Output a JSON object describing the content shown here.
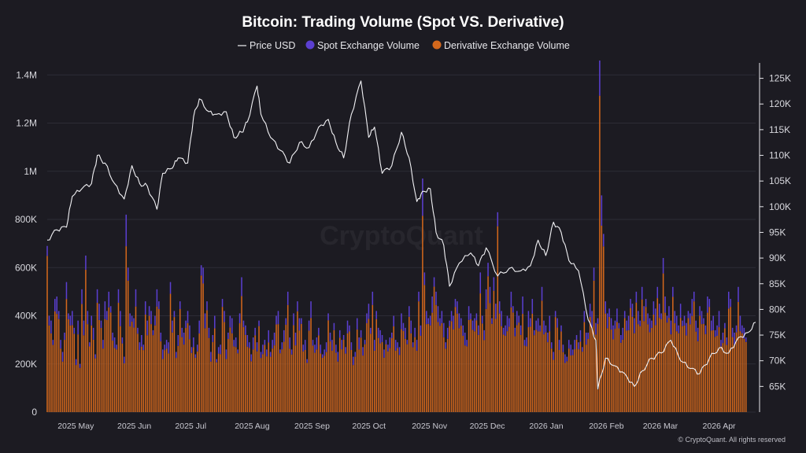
{
  "chart_data": {
    "type": "bar",
    "title": "Bitcoin: Trading Volume (Spot VS. Derivative)",
    "legend": {
      "placement": "top-center",
      "entries": [
        "Price USD",
        "Spot Exchange Volume",
        "Derivative Exchange Volume"
      ]
    },
    "colors": {
      "background": "#1c1b22",
      "price": "#f2f2f5",
      "spot": "#5b3fd1",
      "derivative": "#d4681c",
      "grid": "#2d2c36"
    },
    "watermark": "CryptoQuant",
    "credit": "© CryptoQuant. All rights reserved",
    "grid": true,
    "x_range": [
      "2025-04-26",
      "2026-04-29"
    ],
    "x_ticks": [
      "2025 May",
      "2025 Jun",
      "2025 Jul",
      "2025 Aug",
      "2025 Sep",
      "2025 Oct",
      "2025 Nov",
      "2025 Dec",
      "2026 Jan",
      "2026 Feb",
      "2026 Mar",
      "2026 Apr"
    ],
    "y_left": {
      "label": "",
      "ylim": [
        0,
        1450000
      ],
      "ticks": [
        0,
        200000,
        400000,
        600000,
        800000,
        1000000,
        1200000,
        1400000
      ],
      "tick_labels": [
        "0",
        "200K",
        "400K",
        "600K",
        "800K",
        "1M",
        "1.2M",
        "1.4M"
      ]
    },
    "y_right": {
      "label": "",
      "ylim": [
        60000,
        128000
      ],
      "ticks": [
        65000,
        70000,
        75000,
        80000,
        85000,
        90000,
        95000,
        100000,
        105000,
        110000,
        115000,
        120000,
        125000
      ],
      "tick_labels": [
        "65K",
        "70K",
        "75K",
        "80K",
        "85K",
        "90K",
        "95K",
        "100K",
        "105K",
        "110K",
        "115K",
        "120K",
        "125K"
      ]
    },
    "price_series": {
      "name": "Price USD",
      "points": [
        [
          "2025-04-26",
          93500
        ],
        [
          "2025-05-01",
          95500
        ],
        [
          "2025-05-06",
          96000
        ],
        [
          "2025-05-09",
          102000
        ],
        [
          "2025-05-14",
          103500
        ],
        [
          "2025-05-19",
          104500
        ],
        [
          "2025-05-22",
          110000
        ],
        [
          "2025-05-26",
          108500
        ],
        [
          "2025-05-31",
          104500
        ],
        [
          "2025-06-05",
          101500
        ],
        [
          "2025-06-09",
          108000
        ],
        [
          "2025-06-13",
          104500
        ],
        [
          "2025-06-17",
          104000
        ],
        [
          "2025-06-22",
          99500
        ],
        [
          "2025-06-25",
          106500
        ],
        [
          "2025-06-30",
          107500
        ],
        [
          "2025-07-03",
          109500
        ],
        [
          "2025-07-08",
          108500
        ],
        [
          "2025-07-11",
          117500
        ],
        [
          "2025-07-14",
          121000
        ],
        [
          "2025-07-19",
          118500
        ],
        [
          "2025-07-23",
          118000
        ],
        [
          "2025-07-28",
          118500
        ],
        [
          "2025-08-01",
          113500
        ],
        [
          "2025-08-05",
          114500
        ],
        [
          "2025-08-08",
          116500
        ],
        [
          "2025-08-13",
          123500
        ],
        [
          "2025-08-15",
          118000
        ],
        [
          "2025-08-20",
          113500
        ],
        [
          "2025-08-25",
          111000
        ],
        [
          "2025-08-30",
          108500
        ],
        [
          "2025-09-04",
          112500
        ],
        [
          "2025-09-09",
          111500
        ],
        [
          "2025-09-14",
          115500
        ],
        [
          "2025-09-19",
          117000
        ],
        [
          "2025-09-23",
          112500
        ],
        [
          "2025-09-27",
          109500
        ],
        [
          "2025-10-01",
          118000
        ],
        [
          "2025-10-06",
          124500
        ],
        [
          "2025-10-10",
          113500
        ],
        [
          "2025-10-13",
          115500
        ],
        [
          "2025-10-17",
          106500
        ],
        [
          "2025-10-22",
          108000
        ],
        [
          "2025-10-27",
          114500
        ],
        [
          "2025-10-31",
          109500
        ],
        [
          "2025-11-04",
          101000
        ],
        [
          "2025-11-07",
          103000
        ],
        [
          "2025-11-11",
          103500
        ],
        [
          "2025-11-14",
          95000
        ],
        [
          "2025-11-18",
          92500
        ],
        [
          "2025-11-21",
          84500
        ],
        [
          "2025-11-26",
          89000
        ],
        [
          "2025-12-02",
          91000
        ],
        [
          "2025-12-06",
          88500
        ],
        [
          "2025-12-10",
          92000
        ],
        [
          "2025-12-16",
          86500
        ],
        [
          "2025-12-22",
          88000
        ],
        [
          "2025-12-28",
          87500
        ],
        [
          "2026-01-02",
          88500
        ],
        [
          "2026-01-06",
          93500
        ],
        [
          "2026-01-10",
          90500
        ],
        [
          "2026-01-14",
          97000
        ],
        [
          "2026-01-18",
          95000
        ],
        [
          "2026-01-22",
          89500
        ],
        [
          "2026-01-27",
          87500
        ],
        [
          "2026-02-01",
          78000
        ],
        [
          "2026-02-05",
          74000
        ],
        [
          "2026-02-06",
          64500
        ],
        [
          "2026-02-10",
          70500
        ],
        [
          "2026-02-15",
          69000
        ],
        [
          "2026-02-20",
          67500
        ],
        [
          "2026-02-25",
          65000
        ],
        [
          "2026-03-01",
          68000
        ],
        [
          "2026-03-06",
          70500
        ],
        [
          "2026-03-11",
          71500
        ],
        [
          "2026-03-16",
          74000
        ],
        [
          "2026-03-21",
          70000
        ],
        [
          "2026-03-26",
          68500
        ],
        [
          "2026-03-31",
          67500
        ],
        [
          "2026-04-05",
          70500
        ],
        [
          "2026-04-10",
          72500
        ],
        [
          "2026-04-15",
          71500
        ],
        [
          "2026-04-20",
          74500
        ],
        [
          "2026-04-25",
          75500
        ],
        [
          "2026-04-29",
          77500
        ]
      ]
    },
    "volume_series": [
      {
        "name": "Spot Exchange Volume",
        "stacked_on_top": true
      },
      {
        "name": "Derivative Exchange Volume"
      }
    ],
    "volume_daily_totals_approx": {
      "start": "2025-04-26",
      "step_days": 1,
      "values": [
        690000,
        400000,
        380000,
        300000,
        470000,
        480000,
        420000,
        300000,
        250000,
        330000,
        540000,
        410000,
        400000,
        420000,
        350000,
        220000,
        380000,
        200000,
        510000,
        380000,
        650000,
        420000,
        290000,
        400000,
        350000,
        240000,
        510000,
        450000,
        380000,
        300000,
        460000,
        420000,
        500000,
        440000,
        330000,
        310000,
        280000,
        510000,
        420000,
        310000,
        230000,
        820000,
        600000,
        410000,
        400000,
        390000,
        510000,
        350000,
        290000,
        320000,
        280000,
        460000,
        380000,
        440000,
        420000,
        340000,
        400000,
        510000,
        460000,
        330000,
        260000,
        280000,
        300000,
        290000,
        540000,
        380000,
        420000,
        250000,
        320000,
        460000,
        350000,
        330000,
        380000,
        420000,
        360000,
        270000,
        310000,
        240000,
        280000,
        380000,
        610000,
        600000,
        410000,
        460000,
        350000,
        250000,
        320000,
        400000,
        220000,
        270000,
        280000,
        470000,
        420000,
        260000,
        330000,
        400000,
        390000,
        300000,
        310000,
        260000,
        410000,
        560000,
        380000,
        360000,
        320000,
        290000,
        240000,
        310000,
        350000,
        290000,
        380000,
        250000,
        280000,
        300000,
        260000,
        340000,
        250000,
        300000,
        330000,
        400000,
        420000,
        260000,
        290000,
        340000,
        390000,
        500000,
        310000,
        260000,
        410000,
        330000,
        460000,
        390000,
        390000,
        280000,
        300000,
        220000,
        380000,
        460000,
        300000,
        280000,
        310000,
        350000,
        280000,
        240000,
        260000,
        290000,
        410000,
        330000,
        300000,
        370000,
        280000,
        250000,
        340000,
        300000,
        320000,
        270000,
        380000,
        360000,
        290000,
        230000,
        250000,
        390000,
        310000,
        340000,
        270000,
        300000,
        410000,
        450000,
        350000,
        500000,
        300000,
        420000,
        350000,
        340000,
        320000,
        260000,
        300000,
        280000,
        310000,
        330000,
        400000,
        300000,
        290000,
        270000,
        410000,
        370000,
        350000,
        300000,
        440000,
        380000,
        290000,
        350000,
        300000,
        500000,
        360000,
        970000,
        580000,
        420000,
        390000,
        400000,
        480000,
        560000,
        500000,
        440000,
        390000,
        420000,
        370000,
        290000,
        350000,
        380000,
        420000,
        400000,
        470000,
        460000,
        410000,
        390000,
        360000,
        330000,
        300000,
        440000,
        410000,
        380000,
        390000,
        410000,
        360000,
        580000,
        400000,
        340000,
        510000,
        620000,
        520000,
        390000,
        560000,
        450000,
        830000,
        460000,
        420000,
        350000,
        360000,
        400000,
        390000,
        500000,
        440000,
        350000,
        420000,
        400000,
        360000,
        480000,
        300000,
        310000,
        420000,
        390000,
        470000,
        340000,
        380000,
        390000,
        360000,
        520000,
        380000,
        360000,
        330000,
        400000,
        290000,
        250000,
        420000,
        390000,
        300000,
        360000,
        280000,
        240000,
        230000,
        300000,
        280000,
        260000,
        300000,
        320000,
        290000,
        340000,
        270000,
        420000,
        330000,
        330000,
        450000,
        420000,
        600000,
        370000,
        390000,
        1460000,
        900000,
        740000,
        460000,
        410000,
        430000,
        390000,
        360000,
        380000,
        430000,
        370000,
        320000,
        350000,
        420000,
        380000,
        400000,
        470000,
        450000,
        390000,
        500000,
        420000,
        380000,
        520000,
        440000,
        470000,
        410000,
        390000,
        380000,
        460000,
        430000,
        520000,
        450000,
        410000,
        640000,
        480000,
        400000,
        440000,
        380000,
        520000,
        420000,
        400000,
        360000,
        450000,
        380000,
        400000,
        370000,
        420000,
        410000,
        470000,
        500000,
        380000,
        350000,
        440000,
        420000,
        390000,
        360000,
        480000,
        470000,
        380000,
        400000,
        340000,
        360000,
        420000,
        300000,
        330000,
        370000,
        310000,
        500000,
        470000,
        350000,
        330000,
        360000,
        520000,
        400000,
        360000,
        350000,
        310000
      ]
    }
  }
}
